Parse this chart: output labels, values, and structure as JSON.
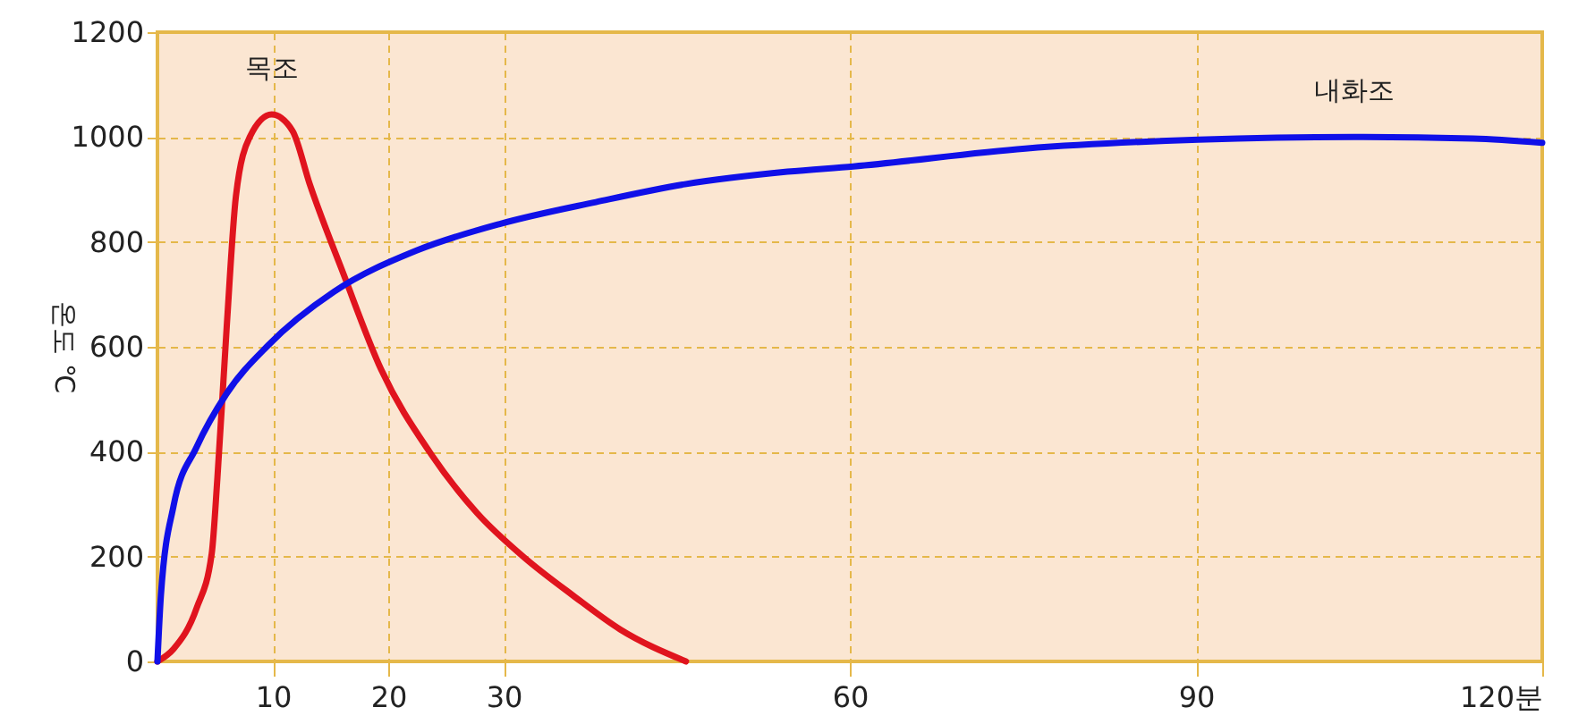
{
  "chart_data": {
    "type": "line",
    "ylabel": "온도 ℃",
    "xlim": [
      0,
      120
    ],
    "xticks": [
      10,
      20,
      30,
      60,
      90,
      {
        "value": 120,
        "label": "120분"
      }
    ],
    "ylim": [
      0,
      1200
    ],
    "yticks": [
      0,
      200,
      400,
      600,
      800,
      1000,
      1200
    ],
    "grid": true,
    "marker": "none",
    "line_style": "solid",
    "series": [
      {
        "name": "목조",
        "color": "#e0141e",
        "x": [
          0,
          1.4,
          3.4,
          4.7,
          5.2,
          6,
          6.8,
          8,
          9.9,
          11.7,
          13.2,
          16.1,
          19.4,
          23.6,
          27.7,
          31.8,
          36,
          40.1,
          45.8
        ],
        "values": [
          0,
          24,
          102,
          205,
          351,
          637,
          887,
          1000,
          1043,
          1012,
          910,
          740,
          556,
          399,
          283,
          198,
          126,
          61,
          0
        ]
      },
      {
        "name": "내화조",
        "color": "#1010e8",
        "x": [
          0,
          0.3,
          1.4,
          3.4,
          6,
          9.6,
          15.3,
          22.5,
          29.8,
          38,
          45.7,
          54.6,
          60.3,
          75.2,
          90.2,
          103.7,
          114,
          120
        ],
        "values": [
          0,
          126,
          297,
          409,
          511,
          603,
          705,
          784,
          835,
          876,
          910,
          934,
          944,
          978,
          995,
          1000,
          997,
          989
        ]
      }
    ]
  }
}
